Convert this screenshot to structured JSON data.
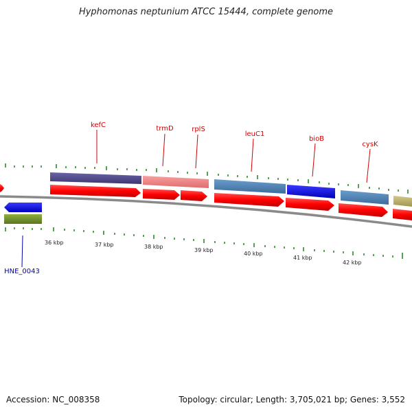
{
  "title": "Hyphomonas neptunium ATCC 15444, complete genome",
  "accession_label": "Accession: NC_008358",
  "topology_label": "Topology: circular; Length: 3,705,021 bp; Genes: 3,552",
  "scale_labels": [
    "36 kbp",
    "37 kbp",
    "38 kbp",
    "39 kbp",
    "40 kbp",
    "41 kbp",
    "42 kbp"
  ],
  "gene_labels": [
    {
      "name": "kefC",
      "color": "#cc0000"
    },
    {
      "name": "trmD",
      "color": "#cc0000"
    },
    {
      "name": "rplS",
      "color": "#cc0000"
    },
    {
      "name": "leuC1",
      "color": "#cc0000"
    },
    {
      "name": "bioB",
      "color": "#cc0000"
    },
    {
      "name": "cysK",
      "color": "#cc0000"
    },
    {
      "name": "HNE_0043",
      "color": "#0000aa"
    }
  ],
  "colors": {
    "cds": "#ff0000",
    "backbone": "#888888",
    "tick": "#2a8a2a",
    "cog_purple": "#4b4583",
    "cog_pink": "#f08080",
    "cog_steelblue": "#4a7fb5",
    "cog_blue": "#0000ee",
    "cog_olive": "#6e8b2a",
    "cog_khaki": "#b8ad6a"
  }
}
